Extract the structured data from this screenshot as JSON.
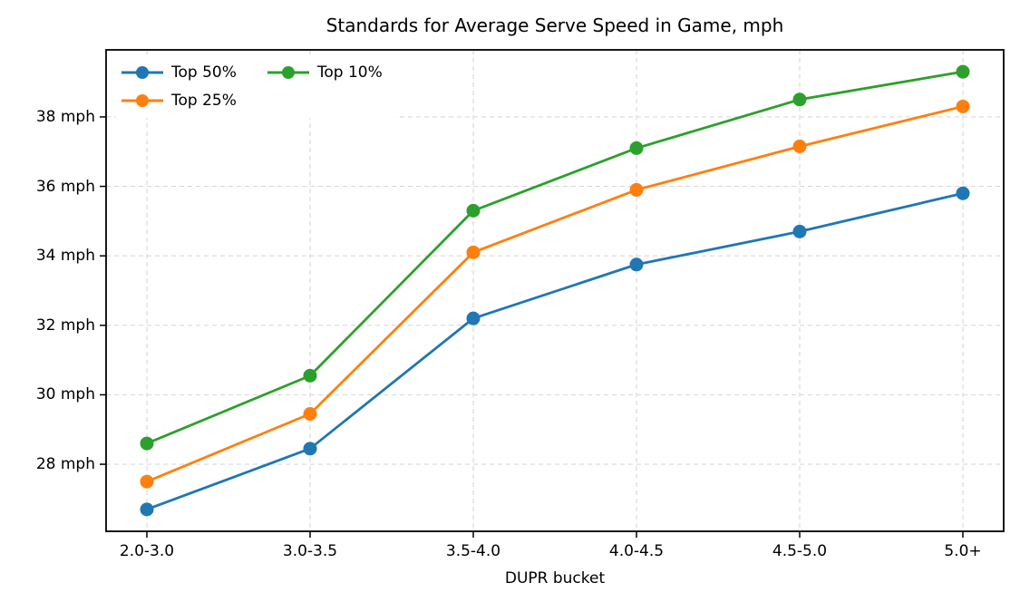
{
  "chart_data": {
    "type": "line",
    "title": "Standards for Average Serve Speed in Game, mph",
    "xlabel": "DUPR bucket",
    "ylabel": "",
    "categories": [
      "2.0-3.0",
      "3.0-3.5",
      "3.5-4.0",
      "4.0-4.5",
      "4.5-5.0",
      "5.0+"
    ],
    "series": [
      {
        "name": "Top 50%",
        "color": "#1f77b4",
        "values": [
          26.7,
          28.45,
          32.2,
          33.75,
          34.7,
          35.8
        ]
      },
      {
        "name": "Top 25%",
        "color": "#ff7f0e",
        "values": [
          27.5,
          29.45,
          34.1,
          35.9,
          37.15,
          38.3
        ]
      },
      {
        "name": "Top 10%",
        "color": "#2ca02c",
        "values": [
          28.6,
          30.55,
          35.3,
          37.1,
          38.5,
          39.3
        ]
      }
    ],
    "yticks": [
      {
        "v": 28,
        "label": "28 mph"
      },
      {
        "v": 30,
        "label": "30 mph"
      },
      {
        "v": 32,
        "label": "32 mph"
      },
      {
        "v": 34,
        "label": "34 mph"
      },
      {
        "v": 36,
        "label": "36 mph"
      },
      {
        "v": 38,
        "label": "38 mph"
      }
    ],
    "ylim": [
      26.07,
      39.93
    ],
    "xlim_pad": 0.25,
    "grid": true,
    "grid_style": "dashed",
    "legend_position": "upper-left",
    "legend_columns": 2,
    "colors": {
      "background": "#ffffff",
      "grid": "#d9d9d9",
      "spine": "#000000",
      "text": "#000000"
    }
  }
}
